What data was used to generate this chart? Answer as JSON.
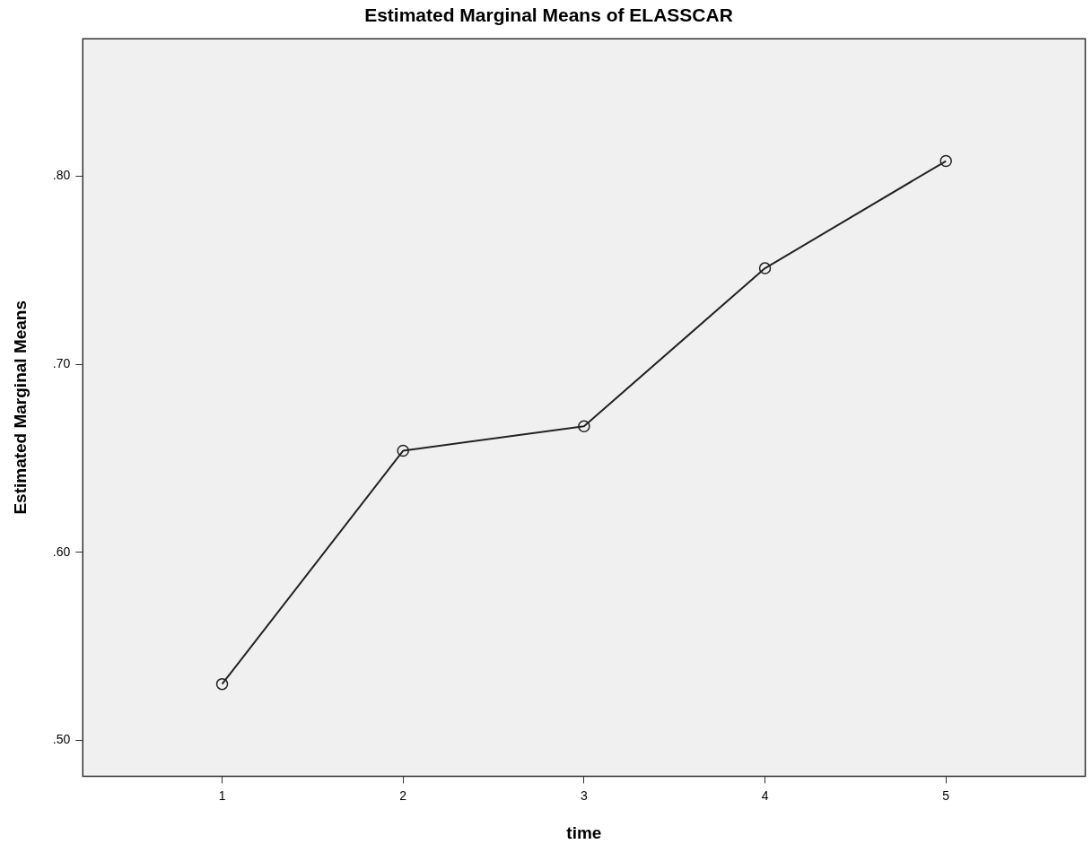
{
  "chart_data": {
    "type": "line",
    "title": "Estimated Marginal Means of ELASSCAR",
    "xlabel": "time",
    "ylabel": "Estimated Marginal Means",
    "x": [
      1,
      2,
      3,
      4,
      5
    ],
    "series": [
      {
        "color": "#222222",
        "values": [
          0.53,
          0.654,
          0.667,
          0.751,
          0.808
        ]
      }
    ],
    "xlim": [
      0.23,
      5.77
    ],
    "xticks": [
      1,
      2,
      3,
      4,
      5
    ],
    "ylim": [
      0.481,
      0.873
    ],
    "yticks": [
      {
        "value": 0.5,
        "label": ".50"
      },
      {
        "value": 0.6,
        "label": ".60"
      },
      {
        "value": 0.7,
        "label": ".70"
      },
      {
        "value": 0.8,
        "label": ".80"
      }
    ],
    "grid": false,
    "legend": false,
    "marker": "circle",
    "line_style": "solid"
  }
}
